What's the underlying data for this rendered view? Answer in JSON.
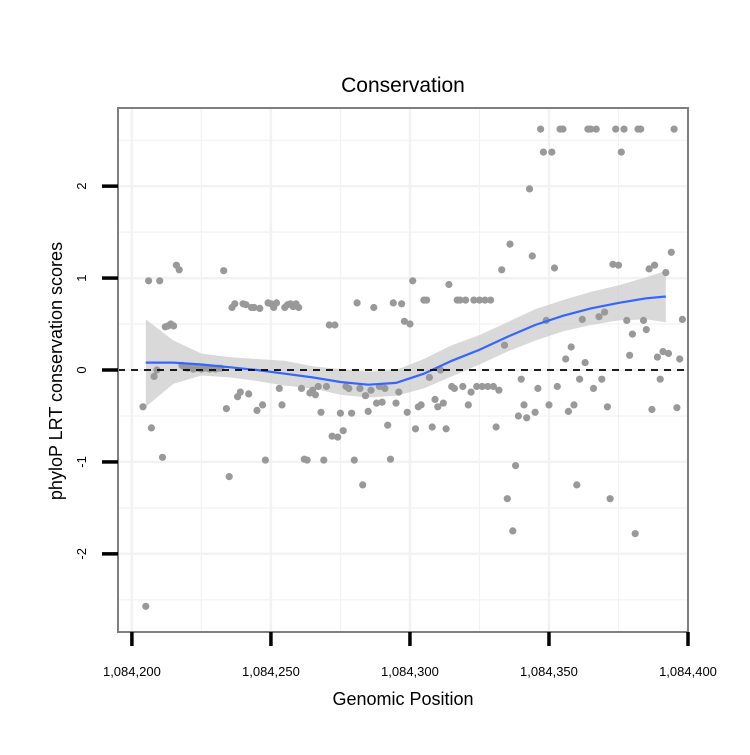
{
  "chart_data": {
    "type": "scatter",
    "title": "Conservation",
    "xlabel": "Genomic Position",
    "ylabel": "phyloP LRT conservation scores",
    "xlim": [
      1084195,
      1084400
    ],
    "ylim": [
      -2.85,
      2.85
    ],
    "x_ticks": [
      1084200,
      1084250,
      1084300,
      1084350,
      1084400
    ],
    "x_tick_labels": [
      "1,084,200",
      "1,084,250",
      "1,084,300",
      "1,084,350",
      "1,084,400"
    ],
    "y_ticks": [
      -2,
      -1,
      0,
      1,
      2
    ],
    "y_tick_labels": [
      "-2",
      "-1",
      "0",
      "1",
      "2"
    ],
    "grid": true,
    "colors": {
      "points": "#999999",
      "smooth": "#3366ff",
      "ribbon": "#cccccc",
      "reference": "#000000",
      "panel_border": "#7f7f7f",
      "grid": "#f2f2f2"
    },
    "reference_line": {
      "y": 0,
      "style": "dashed"
    },
    "points": [
      {
        "x": 1084205,
        "y": -2.57
      },
      {
        "x": 1084204,
        "y": -0.4
      },
      {
        "x": 1084206,
        "y": 0.97
      },
      {
        "x": 1084207,
        "y": -0.63
      },
      {
        "x": 1084208,
        "y": -0.07
      },
      {
        "x": 1084209,
        "y": 0.0
      },
      {
        "x": 1084210,
        "y": 0.97
      },
      {
        "x": 1084211,
        "y": -0.95
      },
      {
        "x": 1084212,
        "y": 0.47
      },
      {
        "x": 1084213,
        "y": 0.48
      },
      {
        "x": 1084214,
        "y": 0.5
      },
      {
        "x": 1084215,
        "y": 0.48
      },
      {
        "x": 1084216,
        "y": 1.14
      },
      {
        "x": 1084217,
        "y": 1.09
      },
      {
        "x": 1084218,
        "y": 0.05
      },
      {
        "x": 1084219,
        "y": 0.03
      },
      {
        "x": 1084220,
        "y": 0.02
      },
      {
        "x": 1084221,
        "y": 0.03
      },
      {
        "x": 1084222,
        "y": 0.01
      },
      {
        "x": 1084223,
        "y": 0.02
      },
      {
        "x": 1084224,
        "y": 0.02
      },
      {
        "x": 1084225,
        "y": 0.01
      },
      {
        "x": 1084226,
        "y": 0.02
      },
      {
        "x": 1084227,
        "y": 0.02
      },
      {
        "x": 1084228,
        "y": 0.01
      },
      {
        "x": 1084229,
        "y": 0.02
      },
      {
        "x": 1084230,
        "y": 0.01
      },
      {
        "x": 1084231,
        "y": 0.02
      },
      {
        "x": 1084232,
        "y": 0.02
      },
      {
        "x": 1084233,
        "y": 1.08
      },
      {
        "x": 1084234,
        "y": -0.42
      },
      {
        "x": 1084235,
        "y": -1.16
      },
      {
        "x": 1084236,
        "y": 0.68
      },
      {
        "x": 1084237,
        "y": 0.72
      },
      {
        "x": 1084238,
        "y": -0.29
      },
      {
        "x": 1084239,
        "y": -0.24
      },
      {
        "x": 1084240,
        "y": 0.72
      },
      {
        "x": 1084241,
        "y": 0.71
      },
      {
        "x": 1084242,
        "y": -0.26
      },
      {
        "x": 1084243,
        "y": 0.68
      },
      {
        "x": 1084244,
        "y": 0.68
      },
      {
        "x": 1084245,
        "y": -0.44
      },
      {
        "x": 1084246,
        "y": 0.67
      },
      {
        "x": 1084247,
        "y": -0.38
      },
      {
        "x": 1084248,
        "y": -0.98
      },
      {
        "x": 1084249,
        "y": 0.73
      },
      {
        "x": 1084250,
        "y": 0.72
      },
      {
        "x": 1084251,
        "y": 0.68
      },
      {
        "x": 1084252,
        "y": 0.73
      },
      {
        "x": 1084253,
        "y": -0.2
      },
      {
        "x": 1084254,
        "y": -0.38
      },
      {
        "x": 1084255,
        "y": 0.68
      },
      {
        "x": 1084256,
        "y": 0.71
      },
      {
        "x": 1084257,
        "y": 0.72
      },
      {
        "x": 1084258,
        "y": 0.69
      },
      {
        "x": 1084259,
        "y": 0.72
      },
      {
        "x": 1084260,
        "y": 0.68
      },
      {
        "x": 1084261,
        "y": -0.2
      },
      {
        "x": 1084262,
        "y": -0.97
      },
      {
        "x": 1084263,
        "y": -0.98
      },
      {
        "x": 1084264,
        "y": -0.25
      },
      {
        "x": 1084265,
        "y": -0.22
      },
      {
        "x": 1084266,
        "y": -0.27
      },
      {
        "x": 1084267,
        "y": -0.18
      },
      {
        "x": 1084268,
        "y": -0.46
      },
      {
        "x": 1084269,
        "y": -0.98
      },
      {
        "x": 1084270,
        "y": -0.18
      },
      {
        "x": 1084271,
        "y": 0.49
      },
      {
        "x": 1084272,
        "y": -0.72
      },
      {
        "x": 1084273,
        "y": 0.49
      },
      {
        "x": 1084274,
        "y": -0.73
      },
      {
        "x": 1084275,
        "y": -0.47
      },
      {
        "x": 1084276,
        "y": -0.66
      },
      {
        "x": 1084277,
        "y": -0.18
      },
      {
        "x": 1084278,
        "y": -0.2
      },
      {
        "x": 1084279,
        "y": -0.47
      },
      {
        "x": 1084280,
        "y": -0.98
      },
      {
        "x": 1084281,
        "y": 0.73
      },
      {
        "x": 1084282,
        "y": -0.2
      },
      {
        "x": 1084283,
        "y": -1.25
      },
      {
        "x": 1084284,
        "y": -0.28
      },
      {
        "x": 1084285,
        "y": -0.45
      },
      {
        "x": 1084286,
        "y": -0.22
      },
      {
        "x": 1084287,
        "y": 0.68
      },
      {
        "x": 1084288,
        "y": -0.36
      },
      {
        "x": 1084289,
        "y": -0.18
      },
      {
        "x": 1084290,
        "y": -0.35
      },
      {
        "x": 1084291,
        "y": -0.2
      },
      {
        "x": 1084292,
        "y": -0.6
      },
      {
        "x": 1084293,
        "y": -0.97
      },
      {
        "x": 1084294,
        "y": 0.73
      },
      {
        "x": 1084295,
        "y": -0.36
      },
      {
        "x": 1084296,
        "y": -0.24
      },
      {
        "x": 1084297,
        "y": 0.72
      },
      {
        "x": 1084298,
        "y": 0.53
      },
      {
        "x": 1084299,
        "y": -0.46
      },
      {
        "x": 1084300,
        "y": 0.5
      },
      {
        "x": 1084301,
        "y": 0.97
      },
      {
        "x": 1084302,
        "y": -0.64
      },
      {
        "x": 1084303,
        "y": -0.4
      },
      {
        "x": 1084304,
        "y": -0.38
      },
      {
        "x": 1084305,
        "y": 0.76
      },
      {
        "x": 1084306,
        "y": 0.76
      },
      {
        "x": 1084307,
        "y": -0.08
      },
      {
        "x": 1084308,
        "y": -0.62
      },
      {
        "x": 1084309,
        "y": -0.32
      },
      {
        "x": 1084310,
        "y": -0.4
      },
      {
        "x": 1084311,
        "y": 0.0
      },
      {
        "x": 1084312,
        "y": -0.36
      },
      {
        "x": 1084313,
        "y": -0.64
      },
      {
        "x": 1084314,
        "y": 0.93
      },
      {
        "x": 1084315,
        "y": -0.18
      },
      {
        "x": 1084316,
        "y": -0.2
      },
      {
        "x": 1084317,
        "y": 0.76
      },
      {
        "x": 1084318,
        "y": 0.76
      },
      {
        "x": 1084319,
        "y": -0.18
      },
      {
        "x": 1084320,
        "y": 0.76
      },
      {
        "x": 1084321,
        "y": -0.38
      },
      {
        "x": 1084322,
        "y": -0.24
      },
      {
        "x": 1084323,
        "y": 0.76
      },
      {
        "x": 1084324,
        "y": -0.18
      },
      {
        "x": 1084325,
        "y": 0.76
      },
      {
        "x": 1084326,
        "y": -0.18
      },
      {
        "x": 1084327,
        "y": 0.76
      },
      {
        "x": 1084328,
        "y": -0.18
      },
      {
        "x": 1084329,
        "y": 0.76
      },
      {
        "x": 1084330,
        "y": -0.18
      },
      {
        "x": 1084331,
        "y": -0.62
      },
      {
        "x": 1084332,
        "y": -0.22
      },
      {
        "x": 1084333,
        "y": 1.09
      },
      {
        "x": 1084334,
        "y": 0.27
      },
      {
        "x": 1084335,
        "y": -1.4
      },
      {
        "x": 1084336,
        "y": 1.37
      },
      {
        "x": 1084337,
        "y": -1.75
      },
      {
        "x": 1084338,
        "y": -1.04
      },
      {
        "x": 1084339,
        "y": -0.5
      },
      {
        "x": 1084340,
        "y": -0.1
      },
      {
        "x": 1084341,
        "y": -0.38
      },
      {
        "x": 1084342,
        "y": -0.52
      },
      {
        "x": 1084343,
        "y": 1.97
      },
      {
        "x": 1084344,
        "y": 1.24
      },
      {
        "x": 1084345,
        "y": -0.46
      },
      {
        "x": 1084346,
        "y": -0.2
      },
      {
        "x": 1084347,
        "y": 2.62
      },
      {
        "x": 1084348,
        "y": 2.37
      },
      {
        "x": 1084349,
        "y": 0.54
      },
      {
        "x": 1084350,
        "y": -0.38
      },
      {
        "x": 1084351,
        "y": 2.37
      },
      {
        "x": 1084352,
        "y": 1.11
      },
      {
        "x": 1084353,
        "y": -0.18
      },
      {
        "x": 1084354,
        "y": 2.62
      },
      {
        "x": 1084355,
        "y": 2.62
      },
      {
        "x": 1084356,
        "y": 0.12
      },
      {
        "x": 1084357,
        "y": -0.45
      },
      {
        "x": 1084358,
        "y": 0.25
      },
      {
        "x": 1084359,
        "y": -0.38
      },
      {
        "x": 1084360,
        "y": -1.25
      },
      {
        "x": 1084361,
        "y": -0.1
      },
      {
        "x": 1084362,
        "y": 0.55
      },
      {
        "x": 1084363,
        "y": 0.08
      },
      {
        "x": 1084364,
        "y": 2.62
      },
      {
        "x": 1084365,
        "y": 2.62
      },
      {
        "x": 1084366,
        "y": -0.2
      },
      {
        "x": 1084367,
        "y": 2.62
      },
      {
        "x": 1084368,
        "y": 0.58
      },
      {
        "x": 1084369,
        "y": -0.1
      },
      {
        "x": 1084370,
        "y": 0.63
      },
      {
        "x": 1084371,
        "y": -0.4
      },
      {
        "x": 1084372,
        "y": -1.4
      },
      {
        "x": 1084373,
        "y": 1.15
      },
      {
        "x": 1084374,
        "y": 2.62
      },
      {
        "x": 1084375,
        "y": 1.14
      },
      {
        "x": 1084376,
        "y": 2.37
      },
      {
        "x": 1084377,
        "y": 2.62
      },
      {
        "x": 1084378,
        "y": 0.54
      },
      {
        "x": 1084379,
        "y": 0.16
      },
      {
        "x": 1084380,
        "y": 0.39
      },
      {
        "x": 1084381,
        "y": -1.78
      },
      {
        "x": 1084382,
        "y": 2.62
      },
      {
        "x": 1084383,
        "y": 2.62
      },
      {
        "x": 1084384,
        "y": 0.54
      },
      {
        "x": 1084385,
        "y": 0.44
      },
      {
        "x": 1084386,
        "y": 1.1
      },
      {
        "x": 1084387,
        "y": -0.43
      },
      {
        "x": 1084388,
        "y": 1.14
      },
      {
        "x": 1084389,
        "y": 0.14
      },
      {
        "x": 1084390,
        "y": -0.1
      },
      {
        "x": 1084391,
        "y": 0.2
      },
      {
        "x": 1084392,
        "y": 1.06
      },
      {
        "x": 1084393,
        "y": 0.18
      },
      {
        "x": 1084394,
        "y": 1.28
      },
      {
        "x": 1084395,
        "y": 2.62
      },
      {
        "x": 1084396,
        "y": -0.41
      },
      {
        "x": 1084397,
        "y": 0.12
      },
      {
        "x": 1084398,
        "y": 0.55
      }
    ],
    "smooth": {
      "x": [
        1084205,
        1084215,
        1084225,
        1084235,
        1084245,
        1084255,
        1084265,
        1084275,
        1084285,
        1084295,
        1084305,
        1084315,
        1084325,
        1084335,
        1084345,
        1084355,
        1084365,
        1084375,
        1084385,
        1084392
      ],
      "y": [
        0.08,
        0.08,
        0.06,
        0.03,
        0.0,
        -0.04,
        -0.08,
        -0.13,
        -0.16,
        -0.14,
        -0.04,
        0.1,
        0.22,
        0.36,
        0.49,
        0.59,
        0.67,
        0.73,
        0.78,
        0.8
      ],
      "lower": [
        -0.4,
        -0.15,
        -0.06,
        -0.08,
        -0.12,
        -0.17,
        -0.2,
        -0.27,
        -0.3,
        -0.28,
        -0.2,
        -0.07,
        0.06,
        0.2,
        0.32,
        0.42,
        0.49,
        0.54,
        0.55,
        0.52
      ],
      "upper": [
        0.55,
        0.32,
        0.18,
        0.14,
        0.12,
        0.1,
        0.04,
        0.01,
        -0.02,
        0.0,
        0.12,
        0.27,
        0.38,
        0.52,
        0.66,
        0.76,
        0.85,
        0.92,
        1.01,
        1.08
      ]
    }
  }
}
